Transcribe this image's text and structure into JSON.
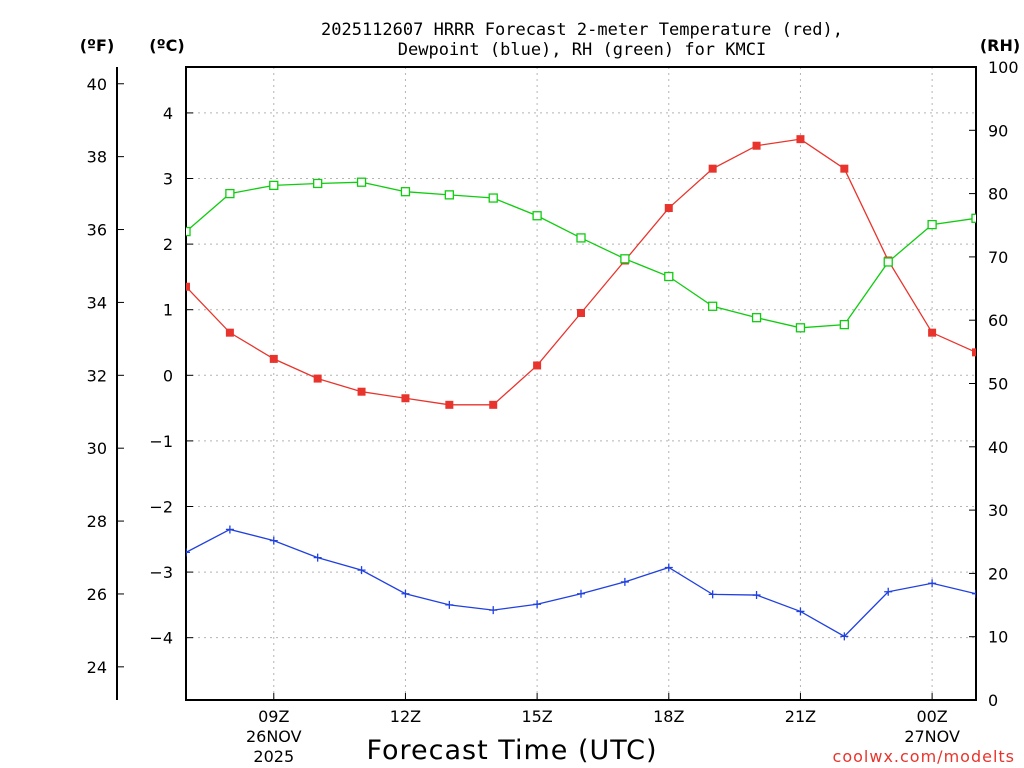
{
  "chart_data": {
    "type": "line",
    "title_line1": "2025112607 HRRR Forecast 2-meter Temperature (red),",
    "title_line2": "Dewpoint (blue), RH (green) for KMCI",
    "unit_f": "(ºF)",
    "unit_c": "(ºC)",
    "unit_rh": "(RH)",
    "xlabel": "Forecast Time (UTC)",
    "credit": "coolwx.com/modelts",
    "x_hours": [
      7,
      8,
      9,
      10,
      11,
      12,
      13,
      14,
      15,
      16,
      17,
      18,
      19,
      20,
      21,
      22,
      23,
      24,
      25
    ],
    "xlim": [
      7,
      25
    ],
    "celsius_lim": [
      -4.95,
      4.7
    ],
    "rh_lim": [
      0,
      100
    ],
    "fahrenheit_lim": [
      23.09,
      40.46
    ],
    "celsius_ticks": [
      4,
      3,
      2,
      1,
      0,
      -1,
      -2,
      -3,
      -4
    ],
    "celsius_tick_labels": [
      "4",
      "3",
      "2",
      "1",
      "0",
      "−1",
      "−2",
      "−3",
      "−4"
    ],
    "fahrenheit_ticks": [
      40,
      38,
      36,
      34,
      32,
      30,
      28,
      26,
      24
    ],
    "fahrenheit_tick_labels": [
      "40",
      "38",
      "36",
      "34",
      "32",
      "30",
      "28",
      "26",
      "24"
    ],
    "rh_ticks": [
      100,
      90,
      80,
      70,
      60,
      50,
      40,
      30,
      20,
      10,
      0
    ],
    "rh_tick_labels": [
      "100",
      "90",
      "80",
      "70",
      "60",
      "50",
      "40",
      "30",
      "20",
      "10",
      "0"
    ],
    "x_ticks": [
      {
        "hour": 9,
        "line1": "09Z",
        "line2": "26NOV",
        "line3": "2025"
      },
      {
        "hour": 12,
        "line1": "12Z",
        "line2": "",
        "line3": ""
      },
      {
        "hour": 15,
        "line1": "15Z",
        "line2": "",
        "line3": ""
      },
      {
        "hour": 18,
        "line1": "18Z",
        "line2": "",
        "line3": ""
      },
      {
        "hour": 21,
        "line1": "21Z",
        "line2": "",
        "line3": ""
      },
      {
        "hour": 24,
        "line1": "00Z",
        "line2": "27NOV",
        "line3": ""
      }
    ],
    "grid": true,
    "series": [
      {
        "name": "Temperature",
        "axis": "celsius",
        "color": "#e8342c",
        "marker": "filled-square",
        "values": [
          1.35,
          0.65,
          0.25,
          -0.05,
          -0.25,
          -0.35,
          -0.45,
          -0.45,
          0.15,
          0.95,
          1.75,
          2.55,
          3.15,
          3.5,
          3.6,
          3.15,
          1.75,
          0.65,
          0.35
        ]
      },
      {
        "name": "Dewpoint",
        "axis": "celsius",
        "color": "#2040e0",
        "marker": "plus",
        "values": [
          -2.7,
          -2.35,
          -2.52,
          -2.78,
          -2.97,
          -3.33,
          -3.5,
          -3.58,
          -3.49,
          -3.33,
          -3.15,
          -2.93,
          -3.34,
          -3.35,
          -3.6,
          -3.98,
          -3.3,
          -3.17,
          -3.33
        ]
      },
      {
        "name": "RH",
        "axis": "rh",
        "color": "#10cc10",
        "marker": "open-square",
        "values": [
          74,
          80,
          81.3,
          81.6,
          81.8,
          80.3,
          79.8,
          79.3,
          76.5,
          73,
          69.7,
          66.9,
          62.2,
          60.4,
          58.8,
          59.3,
          69.2,
          75.1,
          76.1
        ]
      }
    ]
  }
}
